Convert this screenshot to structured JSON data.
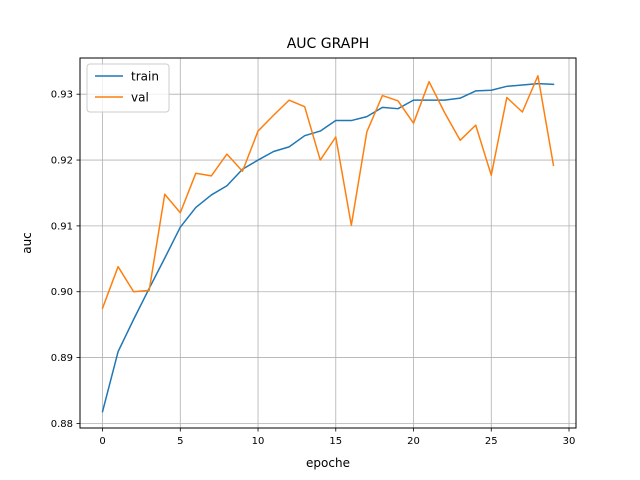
{
  "chart_data": {
    "type": "line",
    "title": "AUC GRAPH",
    "xlabel": "epoche",
    "ylabel": "auc",
    "xlim": [
      -1.45,
      30.45
    ],
    "ylim": [
      0.8793,
      0.9355
    ],
    "xticks": [
      0,
      5,
      10,
      15,
      20,
      25,
      30
    ],
    "yticks": [
      0.88,
      0.89,
      0.9,
      0.91,
      0.92,
      0.93
    ],
    "ytick_labels": [
      "0.88",
      "0.89",
      "0.90",
      "0.91",
      "0.92",
      "0.93"
    ],
    "grid": true,
    "legend": "top-left",
    "x": [
      0,
      1,
      2,
      3,
      4,
      5,
      6,
      7,
      8,
      9,
      10,
      11,
      12,
      13,
      14,
      15,
      16,
      17,
      18,
      19,
      20,
      21,
      22,
      23,
      24,
      25,
      26,
      27,
      28,
      29
    ],
    "series": [
      {
        "name": "train",
        "color": "#1f77b4",
        "values": [
          0.8818,
          0.8909,
          0.8958,
          0.9005,
          0.9051,
          0.9098,
          0.9128,
          0.9147,
          0.9161,
          0.9186,
          0.92,
          0.9213,
          0.922,
          0.9237,
          0.9244,
          0.926,
          0.926,
          0.9266,
          0.928,
          0.9278,
          0.9291,
          0.9291,
          0.9291,
          0.9294,
          0.9305,
          0.9306,
          0.9312,
          0.9314,
          0.9316,
          0.9315
        ]
      },
      {
        "name": "val",
        "color": "#ff7f0e",
        "values": [
          0.8975,
          0.9038,
          0.9,
          0.9002,
          0.9148,
          0.912,
          0.918,
          0.9176,
          0.9209,
          0.9183,
          0.9244,
          0.9268,
          0.9291,
          0.9281,
          0.92,
          0.9235,
          0.9101,
          0.9243,
          0.9298,
          0.929,
          0.9256,
          0.9319,
          0.9272,
          0.923,
          0.9253,
          0.9177,
          0.9295,
          0.9273,
          0.9328,
          0.9192
        ]
      }
    ]
  }
}
